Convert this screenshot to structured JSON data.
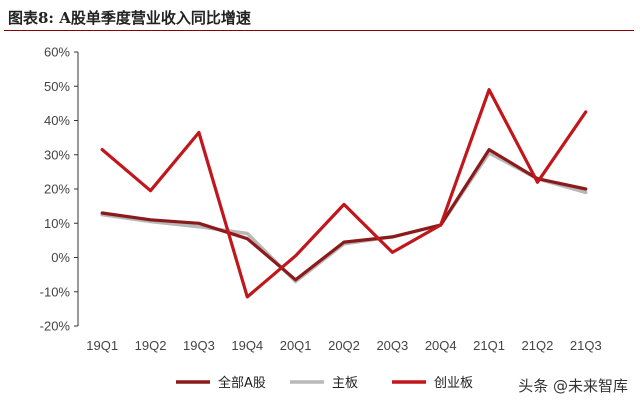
{
  "figure": {
    "label": "图表8:",
    "title": "A股单季度营业收入同比增速"
  },
  "watermark": "头条 @未来智库",
  "chart_data": {
    "type": "line",
    "x": [
      "19Q1",
      "19Q2",
      "19Q3",
      "19Q4",
      "20Q1",
      "20Q2",
      "20Q3",
      "20Q4",
      "21Q1",
      "21Q2",
      "21Q3"
    ],
    "y_ticks": [
      "60%",
      "50%",
      "40%",
      "30%",
      "20%",
      "10%",
      "0%",
      "-10%",
      "-20%"
    ],
    "ylim": [
      -20,
      60
    ],
    "grid": false,
    "legend_position": "bottom",
    "series": [
      {
        "name": "全部A股",
        "color": "#8b1a1a",
        "values": [
          13,
          11,
          10,
          5.5,
          -6.5,
          4.5,
          6,
          9.5,
          31.5,
          23,
          20
        ]
      },
      {
        "name": "主板",
        "color": "#b8b8b8",
        "values": [
          12.5,
          10.5,
          9,
          7,
          -7,
          4,
          6,
          9.5,
          30.5,
          23,
          19
        ]
      },
      {
        "name": "创业板",
        "color": "#c0161c",
        "values": [
          31.5,
          19.5,
          36.5,
          -11.5,
          0.5,
          15.5,
          1.5,
          9.5,
          49,
          22,
          42.5
        ]
      }
    ]
  }
}
